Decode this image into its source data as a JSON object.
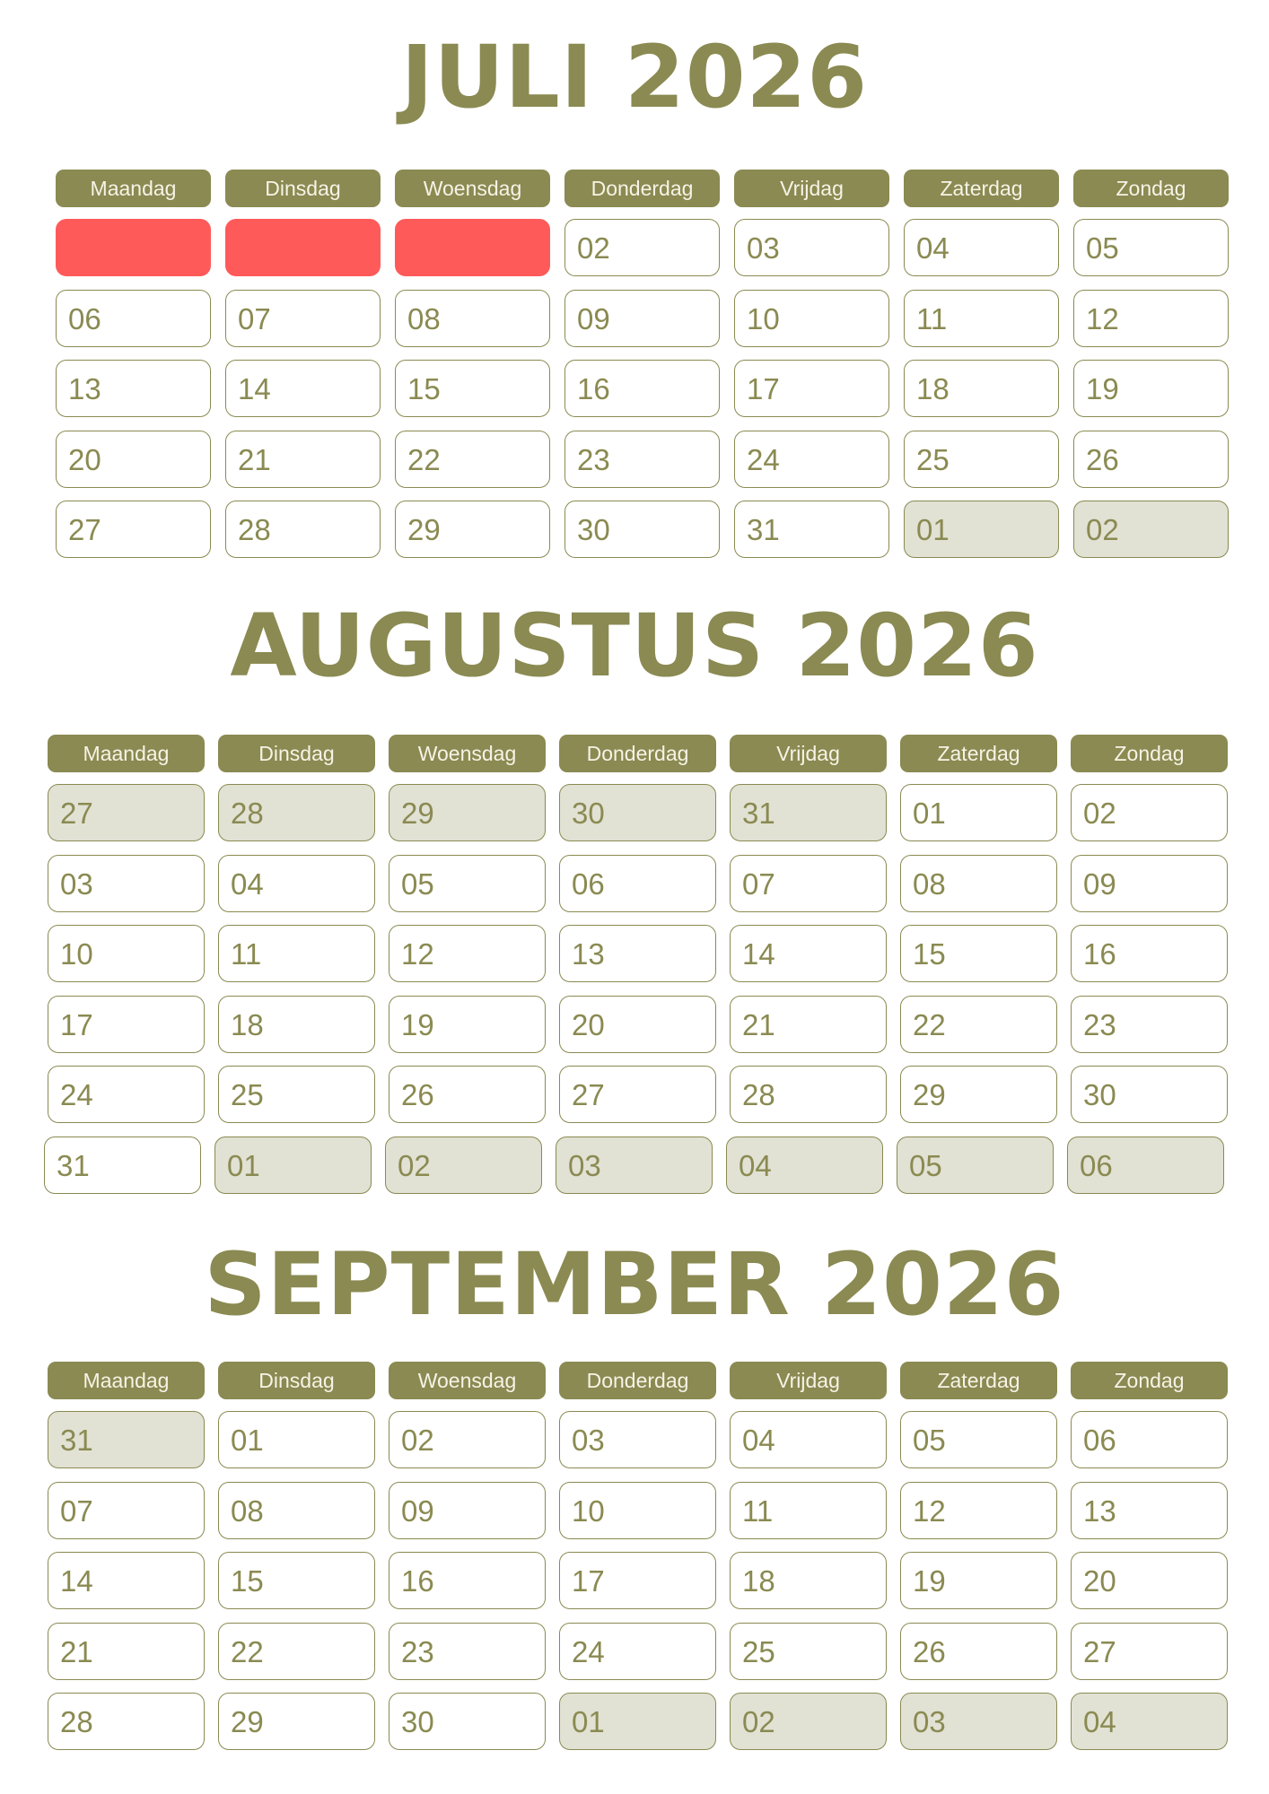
{
  "colors": {
    "accent": "#8a8a52",
    "blocked": "#ff5a5a",
    "other_month": "#e1e1d4"
  },
  "weekdays": [
    "Maandag",
    "Dinsdag",
    "Woensdag",
    "Donderdag",
    "Vrijdag",
    "Zaterdag",
    "Zondag"
  ],
  "months": [
    {
      "title": "JULI 2026",
      "weeks": [
        [
          {
            "d": "",
            "t": "blocked"
          },
          {
            "d": "",
            "t": "blocked"
          },
          {
            "d": "",
            "t": "blocked"
          },
          {
            "d": "02",
            "t": "cur"
          },
          {
            "d": "03",
            "t": "cur"
          },
          {
            "d": "04",
            "t": "cur"
          },
          {
            "d": "05",
            "t": "cur"
          }
        ],
        [
          {
            "d": "06",
            "t": "cur"
          },
          {
            "d": "07",
            "t": "cur"
          },
          {
            "d": "08",
            "t": "cur"
          },
          {
            "d": "09",
            "t": "cur"
          },
          {
            "d": "10",
            "t": "cur"
          },
          {
            "d": "11",
            "t": "cur"
          },
          {
            "d": "12",
            "t": "cur"
          }
        ],
        [
          {
            "d": "13",
            "t": "cur"
          },
          {
            "d": "14",
            "t": "cur"
          },
          {
            "d": "15",
            "t": "cur"
          },
          {
            "d": "16",
            "t": "cur"
          },
          {
            "d": "17",
            "t": "cur"
          },
          {
            "d": "18",
            "t": "cur"
          },
          {
            "d": "19",
            "t": "cur"
          }
        ],
        [
          {
            "d": "20",
            "t": "cur"
          },
          {
            "d": "21",
            "t": "cur"
          },
          {
            "d": "22",
            "t": "cur"
          },
          {
            "d": "23",
            "t": "cur"
          },
          {
            "d": "24",
            "t": "cur"
          },
          {
            "d": "25",
            "t": "cur"
          },
          {
            "d": "26",
            "t": "cur"
          }
        ],
        [
          {
            "d": "27",
            "t": "cur"
          },
          {
            "d": "28",
            "t": "cur"
          },
          {
            "d": "29",
            "t": "cur"
          },
          {
            "d": "30",
            "t": "cur"
          },
          {
            "d": "31",
            "t": "cur"
          },
          {
            "d": "01",
            "t": "other"
          },
          {
            "d": "02",
            "t": "other"
          }
        ]
      ]
    },
    {
      "title": "AUGUSTUS 2026",
      "weeks": [
        [
          {
            "d": "27",
            "t": "other"
          },
          {
            "d": "28",
            "t": "other"
          },
          {
            "d": "29",
            "t": "other"
          },
          {
            "d": "30",
            "t": "other"
          },
          {
            "d": "31",
            "t": "other"
          },
          {
            "d": "01",
            "t": "cur"
          },
          {
            "d": "02",
            "t": "cur"
          }
        ],
        [
          {
            "d": "03",
            "t": "cur"
          },
          {
            "d": "04",
            "t": "cur"
          },
          {
            "d": "05",
            "t": "cur"
          },
          {
            "d": "06",
            "t": "cur"
          },
          {
            "d": "07",
            "t": "cur"
          },
          {
            "d": "08",
            "t": "cur"
          },
          {
            "d": "09",
            "t": "cur"
          }
        ],
        [
          {
            "d": "10",
            "t": "cur"
          },
          {
            "d": "11",
            "t": "cur"
          },
          {
            "d": "12",
            "t": "cur"
          },
          {
            "d": "13",
            "t": "cur"
          },
          {
            "d": "14",
            "t": "cur"
          },
          {
            "d": "15",
            "t": "cur"
          },
          {
            "d": "16",
            "t": "cur"
          }
        ],
        [
          {
            "d": "17",
            "t": "cur"
          },
          {
            "d": "18",
            "t": "cur"
          },
          {
            "d": "19",
            "t": "cur"
          },
          {
            "d": "20",
            "t": "cur"
          },
          {
            "d": "21",
            "t": "cur"
          },
          {
            "d": "22",
            "t": "cur"
          },
          {
            "d": "23",
            "t": "cur"
          }
        ],
        [
          {
            "d": "24",
            "t": "cur"
          },
          {
            "d": "25",
            "t": "cur"
          },
          {
            "d": "26",
            "t": "cur"
          },
          {
            "d": "27",
            "t": "cur"
          },
          {
            "d": "28",
            "t": "cur"
          },
          {
            "d": "29",
            "t": "cur"
          },
          {
            "d": "30",
            "t": "cur"
          }
        ],
        [
          {
            "d": "31",
            "t": "cur"
          },
          {
            "d": "01",
            "t": "other"
          },
          {
            "d": "02",
            "t": "other"
          },
          {
            "d": "03",
            "t": "other"
          },
          {
            "d": "04",
            "t": "other"
          },
          {
            "d": "05",
            "t": "other"
          },
          {
            "d": "06",
            "t": "other"
          }
        ]
      ]
    },
    {
      "title": "SEPTEMBER 2026",
      "weeks": [
        [
          {
            "d": "31",
            "t": "other"
          },
          {
            "d": "01",
            "t": "cur"
          },
          {
            "d": "02",
            "t": "cur"
          },
          {
            "d": "03",
            "t": "cur"
          },
          {
            "d": "04",
            "t": "cur"
          },
          {
            "d": "05",
            "t": "cur"
          },
          {
            "d": "06",
            "t": "cur"
          }
        ],
        [
          {
            "d": "07",
            "t": "cur"
          },
          {
            "d": "08",
            "t": "cur"
          },
          {
            "d": "09",
            "t": "cur"
          },
          {
            "d": "10",
            "t": "cur"
          },
          {
            "d": "11",
            "t": "cur"
          },
          {
            "d": "12",
            "t": "cur"
          },
          {
            "d": "13",
            "t": "cur"
          }
        ],
        [
          {
            "d": "14",
            "t": "cur"
          },
          {
            "d": "15",
            "t": "cur"
          },
          {
            "d": "16",
            "t": "cur"
          },
          {
            "d": "17",
            "t": "cur"
          },
          {
            "d": "18",
            "t": "cur"
          },
          {
            "d": "19",
            "t": "cur"
          },
          {
            "d": "20",
            "t": "cur"
          }
        ],
        [
          {
            "d": "21",
            "t": "cur"
          },
          {
            "d": "22",
            "t": "cur"
          },
          {
            "d": "23",
            "t": "cur"
          },
          {
            "d": "24",
            "t": "cur"
          },
          {
            "d": "25",
            "t": "cur"
          },
          {
            "d": "26",
            "t": "cur"
          },
          {
            "d": "27",
            "t": "cur"
          }
        ],
        [
          {
            "d": "28",
            "t": "cur"
          },
          {
            "d": "29",
            "t": "cur"
          },
          {
            "d": "30",
            "t": "cur"
          },
          {
            "d": "01",
            "t": "other"
          },
          {
            "d": "02",
            "t": "other"
          },
          {
            "d": "03",
            "t": "other"
          },
          {
            "d": "04",
            "t": "other"
          }
        ]
      ]
    }
  ]
}
